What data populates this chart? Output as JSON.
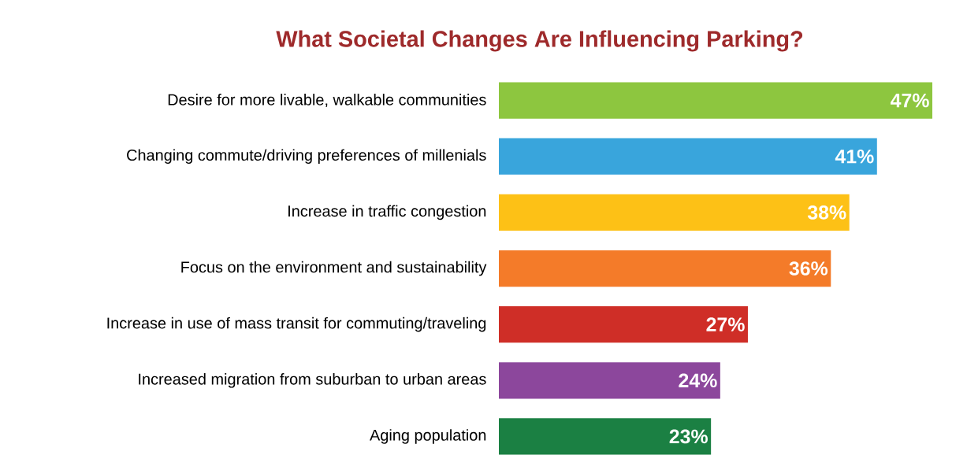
{
  "chart_data": {
    "type": "bar",
    "orientation": "horizontal",
    "title": "What Societal Changes Are Influencing Parking?",
    "categories": [
      "Desire for more livable, walkable communities",
      "Changing commute/driving preferences of millenials",
      "Increase in traffic congestion",
      "Focus on the environment and sustainability",
      "Increase in use of mass transit for commuting/traveling",
      "Increased migration from suburban to urban areas",
      "Aging population"
    ],
    "values": [
      47,
      41,
      38,
      36,
      27,
      24,
      23
    ],
    "colors": [
      "#8dc63f",
      "#39a5dc",
      "#fdc116",
      "#f47b29",
      "#cf2e27",
      "#8c479c",
      "#1b8043"
    ],
    "value_labels": [
      "47%",
      "41%",
      "38%",
      "36%",
      "27%",
      "24%",
      "23%"
    ]
  }
}
